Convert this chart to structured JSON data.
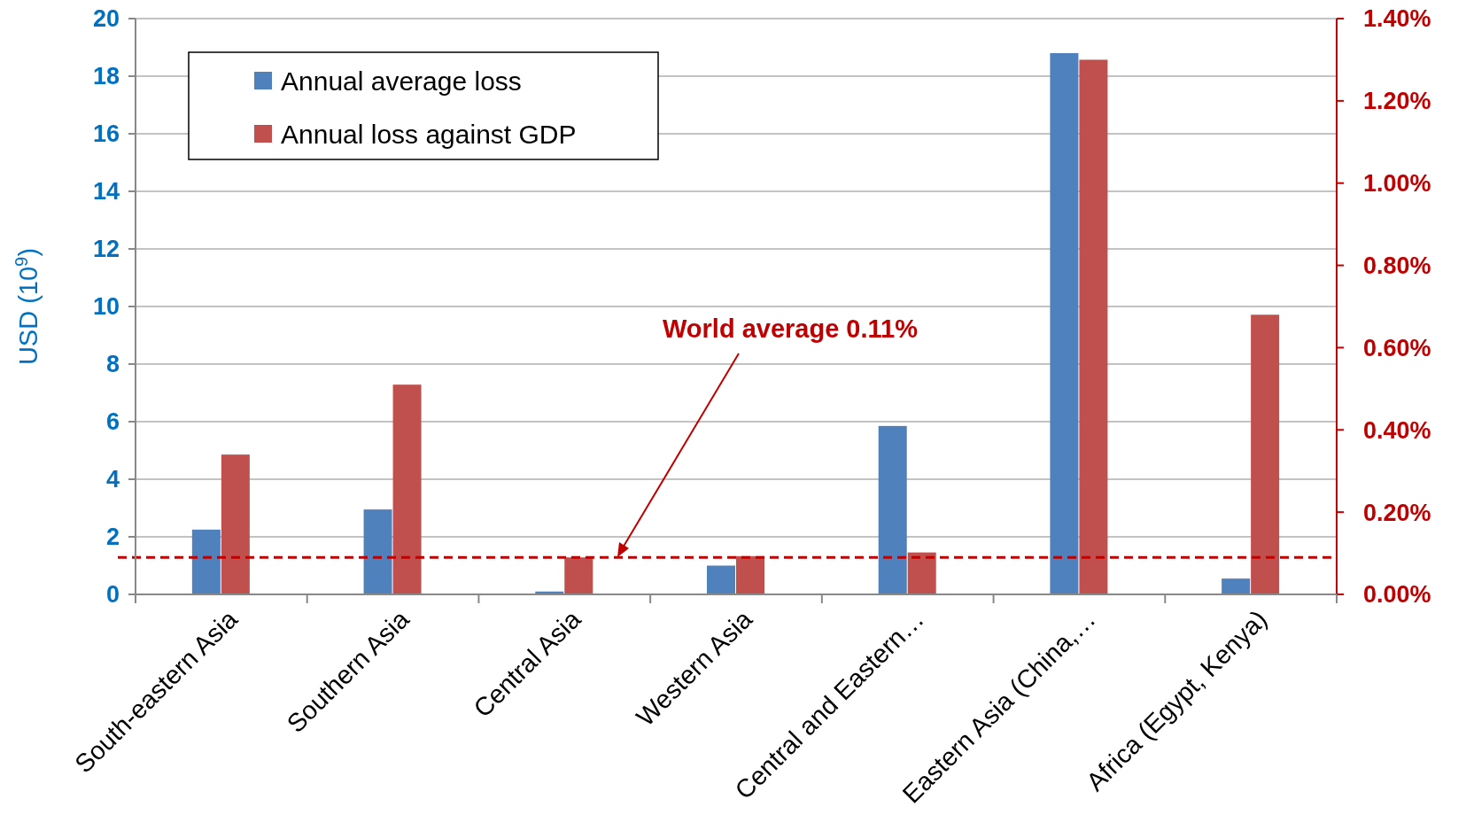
{
  "chart_data": {
    "type": "bar",
    "ylabel": "USD (10$^{9}$)",
    "categories": [
      "South-eastern Asia",
      "Southern Asia",
      "Central Asia",
      "Western Asia",
      "Central and Eastern…",
      "Eastern Asia (China,…",
      "Africa (Egypt, Kenya)"
    ],
    "series": [
      {
        "name": "Annual average loss",
        "color": "#4f81bd",
        "values": [
          2.25,
          2.95,
          0.1,
          1.0,
          5.85,
          18.8,
          0.55
        ]
      },
      {
        "name": "Annual loss against GDP",
        "color": "#c0504d",
        "axis": "y2",
        "values": [
          0.34,
          0.51,
          0.09,
          0.093,
          0.102,
          1.3,
          0.68
        ]
      }
    ],
    "ylim": [
      0,
      20
    ],
    "yticks": [
      0,
      2,
      4,
      6,
      8,
      10,
      12,
      14,
      16,
      18,
      20
    ],
    "y2lim": [
      0,
      1.4
    ],
    "y2ticks": [
      {
        "value": 0,
        "label": "0.00%"
      },
      {
        "value": 0.2,
        "label": "0.20%"
      },
      {
        "value": 0.4,
        "label": "0.40%"
      },
      {
        "value": 0.6,
        "label": "0.60%"
      },
      {
        "value": 0.8,
        "label": "0.80%"
      },
      {
        "value": 1.0,
        "label": "1.00%"
      },
      {
        "value": 1.2,
        "label": "1.20%"
      },
      {
        "value": 1.4,
        "label": "1.40%"
      }
    ],
    "ref_lines": [
      {
        "axis": "y2",
        "value": 0.09,
        "color": "#c00000",
        "line_style": "dashed"
      }
    ],
    "annotations": [
      "World average 0.11%"
    ],
    "grid": "y",
    "legend": "top left"
  }
}
